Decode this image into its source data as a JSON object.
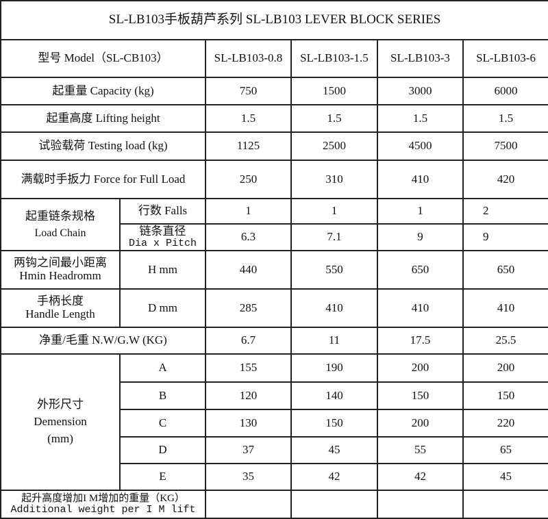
{
  "title": "SL-LB103手板葫芦系列   SL-LB103 LEVER BLOCK SERIES",
  "header": {
    "label": "型号 Model（SL-CB103）",
    "models": [
      "SL-LB103-0.8",
      "SL-LB103-1.5",
      "SL-LB103-3",
      "SL-LB103-6"
    ]
  },
  "rows": {
    "capacity": {
      "label": "起重量 Capacity (kg)",
      "values": [
        "750",
        "1500",
        "3000",
        "6000"
      ]
    },
    "lifting": {
      "label": "起重高度 Lifting height",
      "values": [
        "1.5",
        "1.5",
        "1.5",
        "1.5"
      ]
    },
    "testing": {
      "label": "试验载荷 Testing load (kg)",
      "values": [
        "1125",
        "2500",
        "4500",
        "7500"
      ]
    },
    "force": {
      "label": "满载时手扳力 Force for Full Load",
      "values": [
        "250",
        "310",
        "410",
        "420"
      ]
    },
    "chain": {
      "label_cn": "起重链条规格",
      "label_en": "Load Chain",
      "falls": {
        "label": "行数 Falls",
        "values": [
          "1",
          "1",
          "1",
          "2"
        ]
      },
      "dia": {
        "label_cn": "链条直径",
        "label_en": "Dia x Pitch",
        "values": [
          "6.3",
          "7.1",
          "9",
          "9"
        ]
      }
    },
    "headroom": {
      "label_cn": "两钩之间最小距离",
      "label_en": "Hmin Headromm",
      "sub": "H mm",
      "values": [
        "440",
        "550",
        "650",
        "650"
      ]
    },
    "handle": {
      "label_cn": "手柄长度",
      "label_en": "Handle Length",
      "sub": "D mm",
      "values": [
        "285",
        "410",
        "410",
        "410"
      ]
    },
    "weight": {
      "label": "净重/毛重 N.W/G.W (KG)",
      "values": [
        "6.7",
        "11",
        "17.5",
        "25.5"
      ]
    },
    "dimension": {
      "label_cn": "外形尺寸",
      "label_en": "Demension",
      "unit": "(mm)",
      "items": [
        {
          "key": "A",
          "values": [
            "155",
            "190",
            "200",
            "200"
          ]
        },
        {
          "key": "B",
          "values": [
            "120",
            "140",
            "150",
            "150"
          ]
        },
        {
          "key": "C",
          "values": [
            "130",
            "150",
            "200",
            "220"
          ]
        },
        {
          "key": "D",
          "values": [
            "37",
            "45",
            "55",
            "65"
          ]
        },
        {
          "key": "E",
          "values": [
            "35",
            "42",
            "42",
            "45"
          ]
        }
      ]
    },
    "additional": {
      "label_cn": "起升高度增加I M增加的重量（KG）",
      "label_en": "Additional weight per I M lift",
      "values": [
        "",
        "",
        "",
        ""
      ]
    }
  }
}
